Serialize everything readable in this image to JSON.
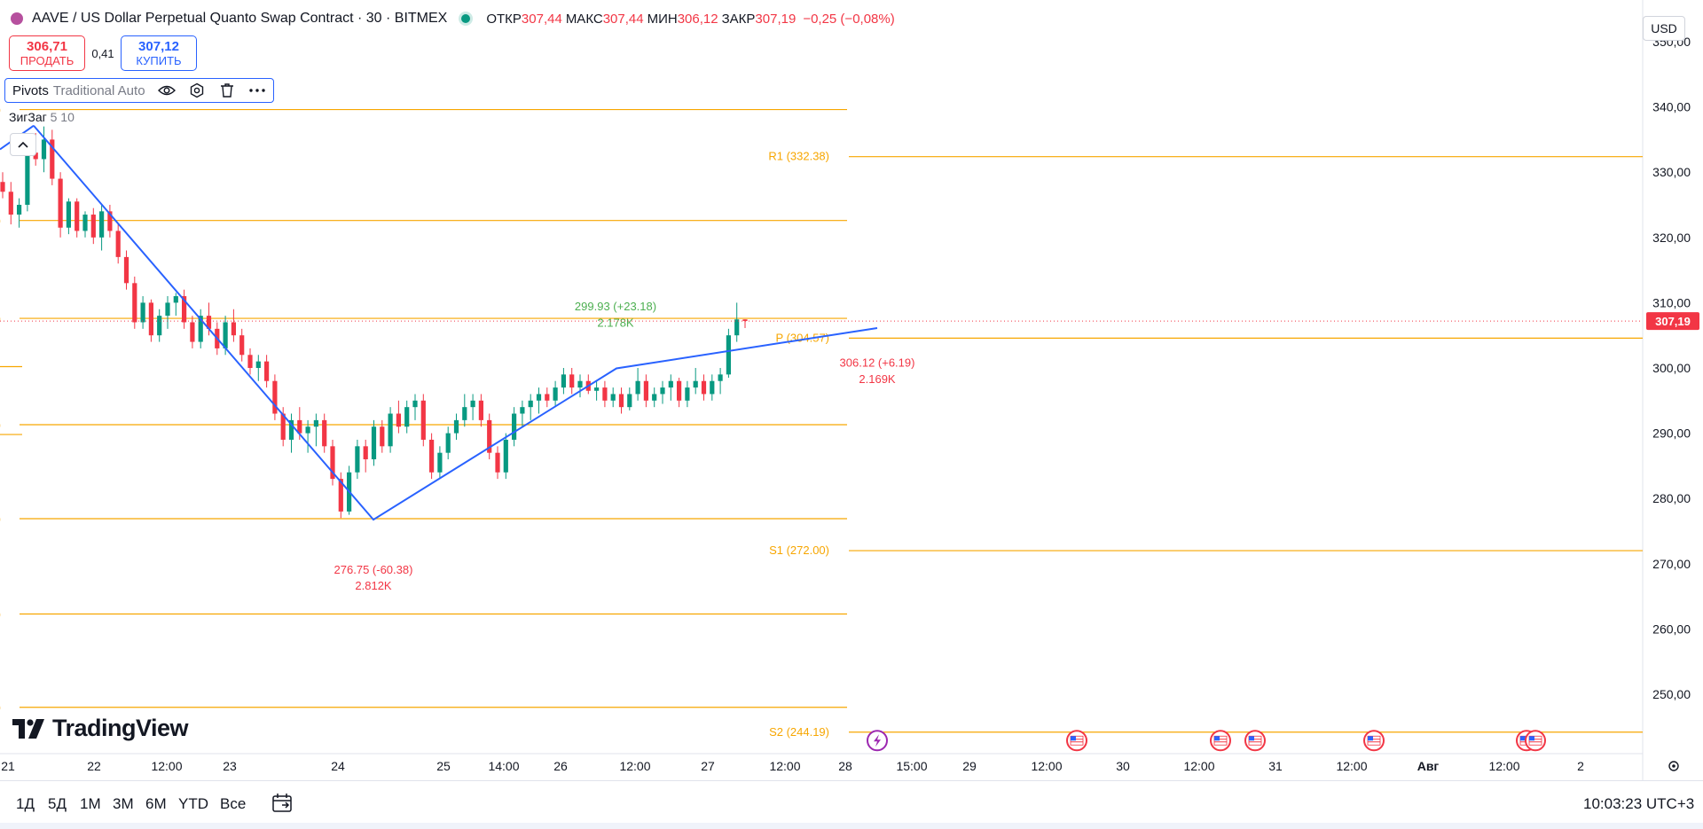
{
  "header": {
    "symbol_title": "AAVE / US Dollar Perpetual Quanto Swap Contract · 30 · BITMEX",
    "ohlc": [
      {
        "label": "ОТКР",
        "value": "307,44"
      },
      {
        "label": "МАКС",
        "value": "307,44"
      },
      {
        "label": "МИН",
        "value": "306,12"
      },
      {
        "label": "ЗАКР",
        "value": "307,19"
      }
    ],
    "change": "−0,25 (−0,08%)"
  },
  "trade": {
    "sell_price": "306,71",
    "sell_label": "ПРОДАТЬ",
    "spread": "0,41",
    "buy_price": "307,12",
    "buy_label": "КУПИТЬ"
  },
  "indicator_pivots": {
    "name": "Pivots",
    "args": "Traditional Auto"
  },
  "indicator_zigzag": {
    "name": "ЗигЗаг",
    "args": "5 10"
  },
  "currency": "USD",
  "price_axis": {
    "ticks": [
      "350,00",
      "340,00",
      "330,00",
      "320,00",
      "310,00",
      "300,00",
      "290,00",
      "280,00",
      "270,00",
      "260,00",
      "250,00"
    ],
    "last_price": "307,19"
  },
  "time_axis": {
    "ticks": [
      "21",
      "22",
      "12:00",
      "23",
      "24",
      "25",
      "14:00",
      "26",
      "12:00",
      "27",
      "12:00",
      "28",
      "15:00",
      "29",
      "12:00",
      "30",
      "12:00",
      "31",
      "12:00",
      "Авг",
      "12:00",
      "2"
    ]
  },
  "pivot_labels": {
    "r1": "R1 (332.38)",
    "p": "P (304.57)",
    "s1": "S1 (272.00)",
    "s2": "S2 (244.19)"
  },
  "zigzag_labels": [
    {
      "text": "299.93 (+23.18)",
      "volume": "2.178K",
      "color": "#4caf50"
    },
    {
      "text": "276.75 (-60.38)",
      "volume": "2.812K",
      "color": "#f23645"
    },
    {
      "text": "306.12 (+6.19)",
      "volume": "2.169K",
      "color": "#f23645"
    }
  ],
  "logo_text": "TradingView",
  "periods": [
    "1Д",
    "5Д",
    "1М",
    "3М",
    "6М",
    "YTD",
    "Все"
  ],
  "clock": "10:03:23 UTC+3",
  "colors": {
    "up": "#089981",
    "down": "#f23645",
    "pivot": "#f7a600",
    "zigzag": "#2962ff"
  },
  "chart_data": {
    "type": "candlestick",
    "title": "AAVE / US Dollar Perpetual Quanto Swap Contract · 30 · BITMEX",
    "ylim": [
      242,
      352
    ],
    "pivot_levels": [
      {
        "name": "R1",
        "value": 332.38
      },
      {
        "name": "P",
        "value": 304.57
      },
      {
        "name": "S1",
        "value": 272.0
      },
      {
        "name": "S2",
        "value": 244.19
      }
    ],
    "zigzag": [
      {
        "time": "21 Jul 10:00",
        "price": 337.13
      },
      {
        "time": "24 Jul 06:00",
        "price": 276.75
      },
      {
        "time": "26 Jul 10:00",
        "price": 299.93
      },
      {
        "time": "28 Jul 04:00",
        "price": 306.12
      }
    ],
    "candles": [
      [
        328.5,
        330,
        326,
        327
      ],
      [
        327,
        328.5,
        322,
        323.5
      ],
      [
        323.5,
        326,
        321.5,
        325
      ],
      [
        325,
        334,
        324,
        333
      ],
      [
        333,
        336,
        331,
        332
      ],
      [
        332,
        337,
        330,
        335
      ],
      [
        335,
        336.5,
        328,
        329
      ],
      [
        329,
        330,
        320,
        321.5
      ],
      [
        321.5,
        326,
        320.5,
        325.5
      ],
      [
        325.5,
        326,
        320,
        321
      ],
      [
        321,
        324,
        320,
        323.5
      ],
      [
        323.5,
        324.5,
        319,
        320
      ],
      [
        320,
        325,
        318,
        324
      ],
      [
        324,
        325,
        320,
        321
      ],
      [
        321,
        322,
        316,
        317
      ],
      [
        317,
        318,
        312,
        313
      ],
      [
        313,
        314,
        306,
        307
      ],
      [
        307,
        311,
        306,
        310
      ],
      [
        310,
        310.5,
        304,
        305
      ],
      [
        305,
        309,
        304,
        308
      ],
      [
        308,
        311,
        306,
        310
      ],
      [
        310,
        311.5,
        308,
        311
      ],
      [
        311,
        312,
        306,
        307
      ],
      [
        307,
        308,
        303,
        304
      ],
      [
        304,
        309,
        303,
        308
      ],
      [
        308,
        310,
        305,
        306
      ],
      [
        306,
        307,
        302,
        303
      ],
      [
        303,
        308,
        302,
        307
      ],
      [
        307,
        309,
        304,
        305
      ],
      [
        305,
        306,
        301,
        302
      ],
      [
        302,
        303,
        299,
        300
      ],
      [
        300,
        302,
        298,
        301
      ],
      [
        301,
        302,
        297,
        298
      ],
      [
        298,
        299,
        292,
        293
      ],
      [
        293,
        294,
        288,
        289
      ],
      [
        289,
        293,
        287,
        292
      ],
      [
        292,
        294,
        289,
        290
      ],
      [
        290,
        292,
        287,
        291
      ],
      [
        291,
        293,
        288,
        292
      ],
      [
        292,
        293,
        287,
        288
      ],
      [
        288,
        289,
        282,
        283
      ],
      [
        283,
        284,
        277,
        278
      ],
      [
        278,
        285,
        277.5,
        284
      ],
      [
        284,
        289,
        283,
        288
      ],
      [
        288,
        289,
        284,
        286
      ],
      [
        286,
        292,
        285,
        291
      ],
      [
        291,
        292,
        287,
        288
      ],
      [
        288,
        294,
        287,
        293
      ],
      [
        293,
        295,
        290,
        291
      ],
      [
        291,
        295,
        290,
        294
      ],
      [
        294,
        296,
        292,
        295
      ],
      [
        295,
        296,
        288,
        289
      ],
      [
        289,
        290,
        283,
        284
      ],
      [
        284,
        288,
        283,
        287
      ],
      [
        287,
        291,
        286,
        290
      ],
      [
        290,
        293,
        289,
        292
      ],
      [
        292,
        296,
        291,
        294
      ],
      [
        294,
        296,
        292,
        295
      ],
      [
        295,
        296,
        291,
        292
      ],
      [
        292,
        293,
        286,
        287
      ],
      [
        287,
        288,
        283,
        284
      ],
      [
        284,
        290,
        283,
        289
      ],
      [
        289,
        294,
        288,
        293
      ],
      [
        293,
        295,
        291,
        294
      ],
      [
        294,
        296,
        292,
        295
      ],
      [
        295,
        297,
        293,
        296
      ],
      [
        296,
        297,
        294,
        295
      ],
      [
        295,
        298,
        294,
        297
      ],
      [
        297,
        300,
        296,
        299
      ],
      [
        299,
        300,
        296,
        297
      ],
      [
        297,
        299,
        295.5,
        298
      ],
      [
        298,
        299,
        296,
        296.5
      ],
      [
        296.5,
        298,
        295,
        297
      ],
      [
        297,
        298,
        294,
        295
      ],
      [
        295,
        297,
        294,
        296
      ],
      [
        296,
        297,
        293,
        294
      ],
      [
        294,
        297,
        293.5,
        296
      ],
      [
        296,
        300,
        295,
        298
      ],
      [
        298,
        299,
        294,
        295
      ],
      [
        295,
        297,
        294,
        296
      ],
      [
        296,
        298,
        294.5,
        297
      ],
      [
        297,
        299,
        295,
        298
      ],
      [
        298,
        298.5,
        294,
        295
      ],
      [
        295,
        298,
        294,
        297
      ],
      [
        297,
        300,
        296,
        298
      ],
      [
        298,
        299,
        295,
        296
      ],
      [
        296,
        299,
        295,
        298
      ],
      [
        298,
        300,
        296,
        299
      ],
      [
        299,
        306,
        298.5,
        305
      ],
      [
        305,
        310,
        304,
        307.44
      ],
      [
        307.44,
        307.44,
        306.12,
        307.19
      ]
    ]
  }
}
